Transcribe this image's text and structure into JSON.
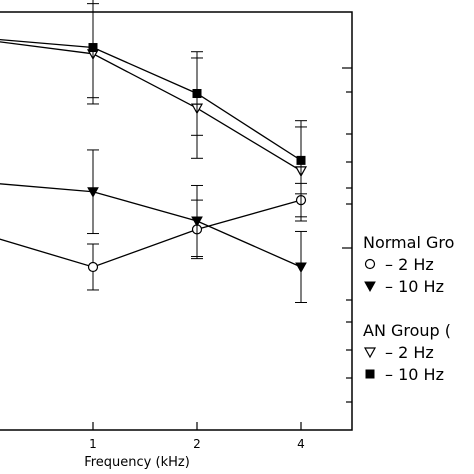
{
  "chart_data": {
    "type": "line",
    "x": [
      1,
      2,
      4
    ],
    "xlabel": "Frequency (kHz)",
    "x_tick_labels": [
      "1",
      "2",
      "4"
    ],
    "x_scale": "log2",
    "xlim": [
      0.5,
      5.5
    ],
    "ylim": [
      0,
      10
    ],
    "grid": false,
    "legend": {
      "placement": "right",
      "groups": [
        {
          "title": "Normal Gro",
          "items": [
            {
              "marker": "open-circle",
              "label": "– 2 Hz"
            },
            {
              "marker": "filled-triangle-down",
              "label": "– 10 Hz"
            }
          ]
        },
        {
          "title": "AN Group (",
          "items": [
            {
              "marker": "open-triangle-down",
              "label": "– 2 Hz"
            },
            {
              "marker": "filled-square",
              "label": "– 10 Hz"
            }
          ]
        }
      ]
    },
    "series": [
      {
        "name": "Normal – 2 Hz",
        "marker": "open-circle",
        "values": [
          3.9,
          4.8,
          5.5
        ],
        "err": [
          0.55,
          0.7,
          0.4
        ],
        "lead": 4.6
      },
      {
        "name": "Normal – 10 Hz",
        "marker": "filled-triangle-down",
        "values": [
          5.7,
          5.0,
          3.9
        ],
        "err": [
          1.0,
          0.85,
          0.85
        ],
        "lead": 5.9
      },
      {
        "name": "AN – 2 Hz",
        "marker": "open-triangle-down",
        "values": [
          9.0,
          7.7,
          6.2
        ],
        "err": [
          1.2,
          1.2,
          1.2
        ],
        "lead": 9.3
      },
      {
        "name": "AN – 10 Hz",
        "marker": "filled-square",
        "values": [
          9.15,
          8.05,
          6.45
        ],
        "err": [
          1.2,
          1.0,
          0.8
        ],
        "lead": 9.35
      }
    ]
  }
}
